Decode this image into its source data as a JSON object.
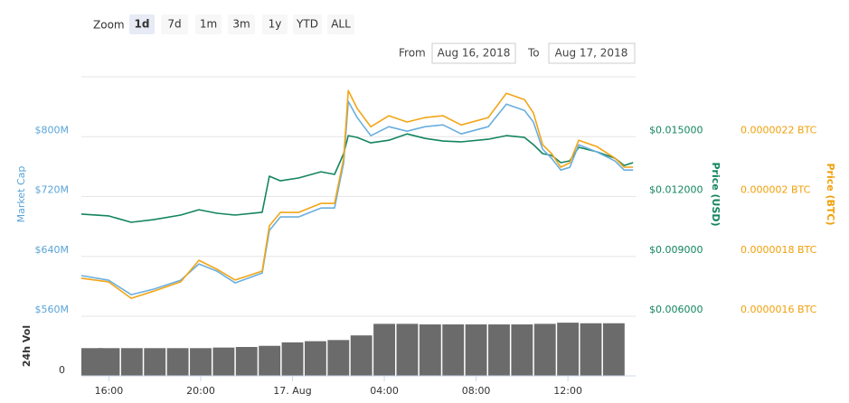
{
  "zoom": {
    "label": "Zoom",
    "buttons": [
      "1d",
      "7d",
      "1m",
      "3m",
      "1y",
      "YTD",
      "ALL"
    ],
    "selected": 0
  },
  "range": {
    "from_label": "From",
    "from": "Aug 16, 2018",
    "to_label": "To",
    "to": "Aug 17, 2018"
  },
  "chart_data": [
    {
      "type": "line",
      "x": [
        14.8,
        15.98,
        16.97,
        17.95,
        19.13,
        19.92,
        20.71,
        21.5,
        22.68,
        22.99,
        23.47,
        24.26,
        25.24,
        25.83,
        26.23,
        26.43,
        26.82,
        27.41,
        28.2,
        28.99,
        29.78,
        30.56,
        31.35,
        32.53,
        33.32,
        34.11,
        34.5,
        34.9,
        35.29,
        35.69,
        36.08,
        36.47,
        37.26,
        38.05,
        38.45,
        38.84
      ],
      "xlim": [
        14.8,
        38.95
      ],
      "series": [
        {
          "name": "Price (USD)",
          "color": "#13855e",
          "axis": "y2",
          "values": [
            0.01112,
            0.01103,
            0.01071,
            0.01084,
            0.01107,
            0.01134,
            0.01116,
            0.01107,
            0.01121,
            0.01302,
            0.01279,
            0.01293,
            0.01324,
            0.01311,
            0.01415,
            0.01505,
            0.01496,
            0.01469,
            0.01482,
            0.01514,
            0.01491,
            0.01478,
            0.01474,
            0.01487,
            0.01505,
            0.01496,
            0.0146,
            0.01415,
            0.01406,
            0.0137,
            0.01379,
            0.01447,
            0.01424,
            0.01392,
            0.01356,
            0.0137
          ]
        },
        {
          "name": "Market Cap",
          "color": "#6aaede",
          "axis": "y",
          "values": [
            614300000,
            608200000,
            588900000,
            596200000,
            608200000,
            629900000,
            620300000,
            604600000,
            617900000,
            674600000,
            692700000,
            692700000,
            704700000,
            704700000,
            765100000,
            847100000,
            825400000,
            801300000,
            813400000,
            807300000,
            813400000,
            815800000,
            803700000,
            813400000,
            843500000,
            835100000,
            819400000,
            783200000,
            771100000,
            755400000,
            759000000,
            789200000,
            779600000,
            767500000,
            755400000,
            755400000
          ]
        },
        {
          "name": "Price (BTC)",
          "color": "#f2a516",
          "axis": "y3",
          "values": [
            1.727e-06,
            1.715e-06,
            1.66e-06,
            1.684e-06,
            1.715e-06,
            1.787e-06,
            1.757e-06,
            1.721e-06,
            1.751e-06,
            1.902e-06,
            1.947e-06,
            1.947e-06,
            1.977e-06,
            1.977e-06,
            2.128e-06,
            2.354e-06,
            2.294e-06,
            2.233e-06,
            2.27e-06,
            2.249e-06,
            2.264e-06,
            2.27e-06,
            2.239e-06,
            2.264e-06,
            2.345e-06,
            2.324e-06,
            2.279e-06,
            2.173e-06,
            2.143e-06,
            2.098e-06,
            2.113e-06,
            2.188e-06,
            2.167e-06,
            2.128e-06,
            2.098e-06,
            2.098e-06
          ]
        }
      ],
      "ylim": [
        560000000,
        880000000
      ],
      "yticks": [
        {
          "value": 560000000,
          "label": "$560M"
        },
        {
          "value": 640000000,
          "label": "$640M"
        },
        {
          "value": 720000000,
          "label": "$720M"
        },
        {
          "value": 800000000,
          "label": "$800M"
        }
      ],
      "y2lim": [
        0.006,
        0.018
      ],
      "y2ticks": [
        {
          "value": 0.006,
          "label": "$0.006000"
        },
        {
          "value": 0.009,
          "label": "$0.009000"
        },
        {
          "value": 0.012,
          "label": "$0.012000"
        },
        {
          "value": 0.015,
          "label": "$0.015000"
        }
      ],
      "y3lim": [
        1.6e-06,
        2.4e-06
      ],
      "y3ticks": [
        {
          "value": 1.6e-06,
          "label": "0.0000016 BTC"
        },
        {
          "value": 1.8e-06,
          "label": "0.0000018 BTC"
        },
        {
          "value": 2e-06,
          "label": "0.000002 BTC"
        },
        {
          "value": 2.2e-06,
          "label": "0.0000022 BTC"
        }
      ],
      "grid": true
    },
    {
      "type": "bar",
      "name": "24h Vol",
      "color": "#6b6b6b",
      "x": [
        15,
        16,
        17,
        18,
        19,
        20,
        21,
        22,
        23,
        24,
        25,
        26,
        27,
        28,
        29,
        30,
        31,
        32,
        33,
        34,
        35,
        36,
        37,
        38
      ],
      "values": [
        48,
        48,
        48,
        48,
        48,
        48,
        49,
        50,
        52,
        58,
        60,
        62,
        70,
        90,
        90,
        89,
        89,
        89,
        89,
        89,
        90,
        92,
        91,
        91
      ],
      "xlim": [
        14.8,
        38.95
      ],
      "xticks": [
        {
          "value": 16,
          "label": "16:00"
        },
        {
          "value": 20,
          "label": "20:00"
        },
        {
          "value": 24,
          "label": "17. Aug"
        },
        {
          "value": 28,
          "label": "04:00"
        },
        {
          "value": 32,
          "label": "08:00"
        },
        {
          "value": 36,
          "label": "12:00"
        }
      ],
      "ylim": [
        0,
        100
      ],
      "yticks": [
        0
      ]
    }
  ]
}
